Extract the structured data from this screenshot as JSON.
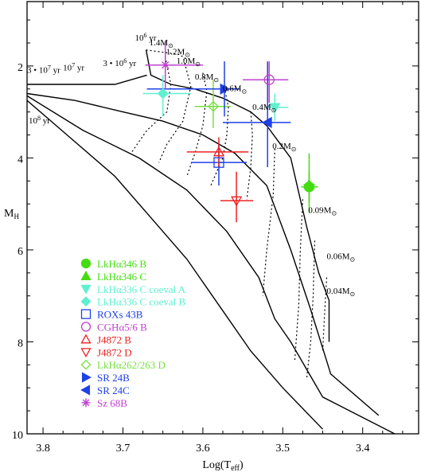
{
  "chart_data": {
    "type": "scatter",
    "xlabel": "Log(T",
    "xlabel_sub": "eff",
    "xlabel_close": ")",
    "ylabel": "M",
    "ylabel_sub": "H",
    "xlim": [
      3.82,
      3.33
    ],
    "ylim": [
      10,
      0.6
    ],
    "xticks": [
      {
        "value": 3.8,
        "label": "3.8"
      },
      {
        "value": 3.7,
        "label": "3.7"
      },
      {
        "value": 3.6,
        "label": "3.6"
      },
      {
        "value": 3.5,
        "label": "3.5"
      },
      {
        "value": 3.4,
        "label": "3.4"
      }
    ],
    "yticks": [
      {
        "value": 2,
        "label": "2"
      },
      {
        "value": 4,
        "label": "4"
      },
      {
        "value": 6,
        "label": "6"
      },
      {
        "value": 8,
        "label": "8"
      },
      {
        "value": 10,
        "label": "10"
      }
    ],
    "isochrones": [
      {
        "label": "10^6 yr",
        "points": [
          [
            3.671,
            1.65
          ],
          [
            3.665,
            2.2
          ],
          [
            3.64,
            2.4
          ],
          [
            3.61,
            2.5
          ],
          [
            3.575,
            2.7
          ],
          [
            3.54,
            3.0
          ],
          [
            3.52,
            3.3
          ],
          [
            3.49,
            4.0
          ],
          [
            3.47,
            5.5
          ],
          [
            3.455,
            6.5
          ],
          [
            3.442,
            7.1
          ],
          [
            3.442,
            8.0
          ]
        ]
      },
      {
        "label": "3·10^6 yr",
        "points": [
          [
            3.82,
            2.4
          ],
          [
            3.71,
            2.4
          ],
          [
            3.67,
            2.2
          ]
        ]
      },
      {
        "label": "10^7 yr",
        "points": [
          [
            3.82,
            2.6
          ],
          [
            3.76,
            2.75
          ],
          [
            3.7,
            3.0
          ],
          [
            3.65,
            3.2
          ],
          [
            3.6,
            3.5
          ],
          [
            3.56,
            3.9
          ],
          [
            3.52,
            4.6
          ],
          [
            3.49,
            6.0
          ],
          [
            3.465,
            7.3
          ],
          [
            3.44,
            8.7
          ],
          [
            3.38,
            9.6
          ]
        ]
      },
      {
        "label": "3·10^7 yr",
        "points": [
          [
            3.82,
            2.65
          ],
          [
            3.75,
            3.4
          ],
          [
            3.68,
            4.0
          ],
          [
            3.62,
            4.7
          ],
          [
            3.57,
            5.6
          ],
          [
            3.53,
            6.6
          ],
          [
            3.51,
            7.5
          ],
          [
            3.49,
            8.0
          ],
          [
            3.45,
            9.2
          ],
          [
            3.36,
            10.0
          ]
        ]
      },
      {
        "label": "10^8 yr",
        "points": [
          [
            3.82,
            2.75
          ],
          [
            3.77,
            3.5
          ],
          [
            3.71,
            4.4
          ],
          [
            3.66,
            5.4
          ],
          [
            3.62,
            6.2
          ],
          [
            3.58,
            7.2
          ],
          [
            3.54,
            8.2
          ],
          [
            3.5,
            9.0
          ],
          [
            3.45,
            9.9
          ]
        ]
      }
    ],
    "tracks": [
      {
        "label": "1.4M⊙",
        "points": [
          [
            3.671,
            1.65
          ],
          [
            3.63,
            1.75
          ],
          [
            3.62,
            1.85
          ]
        ]
      },
      {
        "label": "1.2M⊙",
        "points": [
          [
            3.647,
            1.8
          ],
          [
            3.64,
            2.4
          ],
          [
            3.645,
            3.0
          ],
          [
            3.67,
            3.4
          ],
          [
            3.69,
            3.9
          ]
        ]
      },
      {
        "label": "1.0M⊙",
        "points": [
          [
            3.624,
            1.85
          ],
          [
            3.615,
            2.45
          ],
          [
            3.625,
            3.2
          ],
          [
            3.645,
            3.7
          ],
          [
            3.655,
            4.1
          ]
        ]
      },
      {
        "label": "0.8M⊙",
        "points": [
          [
            3.6,
            2.15
          ],
          [
            3.595,
            2.55
          ],
          [
            3.6,
            3.3
          ],
          [
            3.61,
            3.9
          ],
          [
            3.62,
            4.4
          ]
        ]
      },
      {
        "label": "0.6M⊙",
        "points": [
          [
            3.572,
            2.55
          ],
          [
            3.568,
            2.9
          ],
          [
            3.57,
            3.5
          ],
          [
            3.575,
            4.0
          ],
          [
            3.59,
            4.6
          ]
        ]
      },
      {
        "label": "0.4M⊙",
        "points": [
          [
            3.54,
            3.0
          ],
          [
            3.538,
            3.5
          ],
          [
            3.54,
            4.2
          ],
          [
            3.545,
            4.9
          ]
        ]
      },
      {
        "label": "0.2M⊙",
        "points": [
          [
            3.51,
            3.8
          ],
          [
            3.512,
            4.8
          ],
          [
            3.52,
            6.0
          ],
          [
            3.525,
            7.0
          ]
        ]
      },
      {
        "label": "0.09M⊙",
        "points": [
          [
            3.475,
            4.9
          ],
          [
            3.478,
            6.0
          ],
          [
            3.48,
            7.2
          ],
          [
            3.485,
            8.4
          ]
        ]
      },
      {
        "label": "0.06M⊙",
        "points": [
          [
            3.46,
            5.8
          ],
          [
            3.462,
            7.0
          ],
          [
            3.465,
            8.0
          ],
          [
            3.47,
            8.8
          ]
        ]
      },
      {
        "label": "0.04M⊙",
        "points": [
          [
            3.445,
            6.6
          ],
          [
            3.448,
            7.5
          ],
          [
            3.45,
            8.2
          ]
        ]
      }
    ],
    "isochrone_labels": [
      {
        "text": "10",
        "sup": "6",
        "rest": " yr",
        "x": 3.685,
        "y": 1.45
      },
      {
        "text": "3 • 10",
        "sup": "6",
        "rest": " yr",
        "x": 3.725,
        "y": 2.0
      },
      {
        "text": "10",
        "sup": "7",
        "rest": " yr",
        "x": 3.775,
        "y": 2.1
      },
      {
        "text": "3 • 10",
        "sup": "7",
        "rest": " yr",
        "x": 3.82,
        "y": 2.15
      },
      {
        "text": "10",
        "sup": "8",
        "rest": " yr",
        "x": 3.818,
        "y": 3.25
      }
    ],
    "mass_labels": [
      {
        "text": "1.4M",
        "x": 3.667,
        "y": 1.55
      },
      {
        "text": "1.2M",
        "x": 3.646,
        "y": 1.75
      },
      {
        "text": "1.0M",
        "x": 3.633,
        "y": 1.95
      },
      {
        "text": "0.8M",
        "x": 3.61,
        "y": 2.3
      },
      {
        "text": "0.6M",
        "x": 3.575,
        "y": 2.55
      },
      {
        "text": "0.4M",
        "x": 3.538,
        "y": 2.95
      },
      {
        "text": "0.2M",
        "x": 3.513,
        "y": 3.8
      },
      {
        "text": "0.09M",
        "x": 3.468,
        "y": 5.2
      },
      {
        "text": "0.06M",
        "x": 3.445,
        "y": 6.2
      },
      {
        "text": "0.04M",
        "x": 3.445,
        "y": 6.95
      }
    ],
    "mass_unit": "⊙",
    "series": [
      {
        "name": "LkHα346 B",
        "marker": "circle-filled",
        "color": "#44dd11",
        "x": 3.467,
        "y": 4.63,
        "xerr": [
          3.477,
          3.456
        ],
        "yerr": [
          4.3,
          4.95
        ]
      },
      {
        "name": "LkHα346 C",
        "marker": "triangle-up-filled",
        "color": "#44dd11",
        "x": 3.467,
        "y": 4.58,
        "xerr": [
          3.474,
          3.46
        ],
        "yerr": [
          3.9,
          5.2
        ]
      },
      {
        "name": "LkHα336 C coeval A",
        "marker": "triangle-down-filled",
        "color": "#5ff0d0",
        "x": 3.51,
        "y": 2.9,
        "xerr": [
          3.522,
          3.493
        ],
        "yerr": [
          2.6,
          3.2
        ]
      },
      {
        "name": "LkHα336 C coeval B",
        "marker": "diamond-filled",
        "color": "#5ff0d0",
        "x": 3.65,
        "y": 2.6,
        "xerr": [
          3.675,
          3.615
        ],
        "yerr": [
          2.2,
          3.1
        ]
      },
      {
        "name": "ROXs 43B",
        "marker": "square-open",
        "color": "#1e40e8",
        "x": 3.58,
        "y": 4.1,
        "xerr": [
          3.615,
          3.545
        ],
        "yerr": [
          3.7,
          4.6
        ]
      },
      {
        "name": "CGHα5/6 B",
        "marker": "circle-open",
        "color": "#c040d0",
        "x": 3.517,
        "y": 2.3,
        "xerr": [
          3.55,
          3.493
        ],
        "yerr": [
          1.9,
          2.8
        ]
      },
      {
        "name": "J4872 B",
        "marker": "triangle-up-open",
        "color": "#ee2222",
        "x": 3.58,
        "y": 3.87,
        "xerr": [
          3.62,
          3.543
        ],
        "yerr": [
          3.55,
          4.2
        ]
      },
      {
        "name": "J4872 D",
        "marker": "triangle-down-open",
        "color": "#ee2222",
        "x": 3.558,
        "y": 4.93,
        "xerr": [
          3.578,
          3.537
        ],
        "yerr": [
          4.3,
          5.4
        ]
      },
      {
        "name": "LkHα262/263 D",
        "marker": "diamond-open",
        "color": "#77e040",
        "x": 3.587,
        "y": 2.88,
        "xerr": [
          3.61,
          3.565
        ],
        "yerr": [
          2.3,
          3.35
        ]
      },
      {
        "name": "SR 24B",
        "marker": "triangle-right-filled",
        "color": "#1e40e8",
        "x": 3.573,
        "y": 2.5,
        "xerr": [
          3.67,
          3.553
        ],
        "yerr": [
          1.9,
          3.1
        ]
      },
      {
        "name": "SR 24C",
        "marker": "triangle-left-filled",
        "color": "#1e40e8",
        "x": 3.519,
        "y": 3.23,
        "xerr": [
          3.575,
          3.49
        ],
        "yerr": [
          1.9,
          4.2
        ]
      },
      {
        "name": "Sz 68B",
        "marker": "asterisk",
        "color": "#c040d0",
        "x": 3.647,
        "y": 1.98,
        "xerr": [
          3.672,
          3.6
        ],
        "yerr": [
          1.45,
          2.5
        ]
      }
    ],
    "legend": {
      "placement": "lower-left"
    }
  }
}
